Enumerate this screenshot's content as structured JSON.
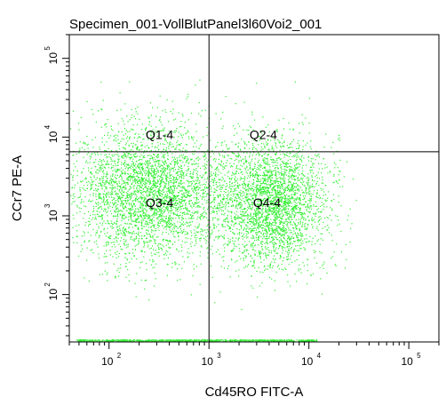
{
  "chart_data": {
    "type": "scatter",
    "title": "Specimen_001-VollBlutPanel3l60Voi2_001",
    "xlabel": "Cd45RO FITC-A",
    "ylabel": "CCr7 PE-A",
    "x_scale": "log",
    "y_scale": "log",
    "xlim": [
      40,
      200000
    ],
    "ylim": [
      25,
      200000
    ],
    "x_ticks": [
      {
        "base": "10",
        "exp": "2",
        "value": 100
      },
      {
        "base": "10",
        "exp": "3",
        "value": 1000
      },
      {
        "base": "10",
        "exp": "4",
        "value": 10000
      },
      {
        "base": "10",
        "exp": "5",
        "value": 100000
      }
    ],
    "y_ticks": [
      {
        "base": "10",
        "exp": "2",
        "value": 100
      },
      {
        "base": "10",
        "exp": "3",
        "value": 1000
      },
      {
        "base": "10",
        "exp": "4",
        "value": 10000
      },
      {
        "base": "10",
        "exp": "5",
        "value": 100000
      }
    ],
    "gates": {
      "x": 1000,
      "y": 6500
    },
    "quadrant_labels": [
      {
        "text": "Q1-4",
        "x": 320,
        "y": 9500
      },
      {
        "text": "Q2-4",
        "x": 3500,
        "y": 9500
      },
      {
        "text": "Q3-4",
        "x": 320,
        "y": 1300
      },
      {
        "text": "Q4-4",
        "x": 3800,
        "y": 1300
      }
    ],
    "point_color": "#33ee33",
    "series": [
      {
        "cx": 250,
        "cy": 2000,
        "sx": 0.38,
        "sy": 0.42,
        "n": 3600
      },
      {
        "cx": 4200,
        "cy": 1500,
        "sx": 0.27,
        "sy": 0.4,
        "n": 3000
      }
    ]
  }
}
